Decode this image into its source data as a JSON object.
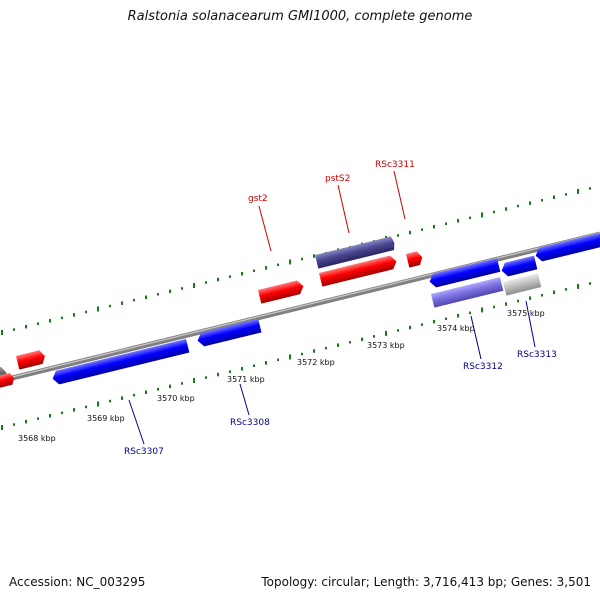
{
  "title": "Ralstonia solanacearum GMI1000, complete genome",
  "footer": {
    "accession": "Accession: NC_003295",
    "topology": "Topology: circular; Length: 3,716,413 bp; Genes: 3,501"
  },
  "colors": {
    "forward_gene": "#ff0000",
    "reverse_gene": "#0000ff",
    "forward_label": "#cc0000",
    "reverse_label": "#00008b",
    "tick": "#1a7a1a",
    "backbone": "#808080"
  },
  "kbp_labels": [
    "3568 kbp",
    "3569 kbp",
    "3570 kbp",
    "3571 kbp",
    "3572 kbp",
    "3573 kbp",
    "3574 kbp",
    "3575 kbp"
  ],
  "gene_labels": [
    {
      "text": "gst2",
      "strand": "forward"
    },
    {
      "text": "pstS2",
      "strand": "forward"
    },
    {
      "text": "RSc3311",
      "strand": "forward"
    },
    {
      "text": "RSc3307",
      "strand": "reverse"
    },
    {
      "text": "RSc3308",
      "strand": "reverse"
    },
    {
      "text": "RSc3312",
      "strand": "reverse"
    },
    {
      "text": "RSc3313",
      "strand": "reverse"
    }
  ]
}
